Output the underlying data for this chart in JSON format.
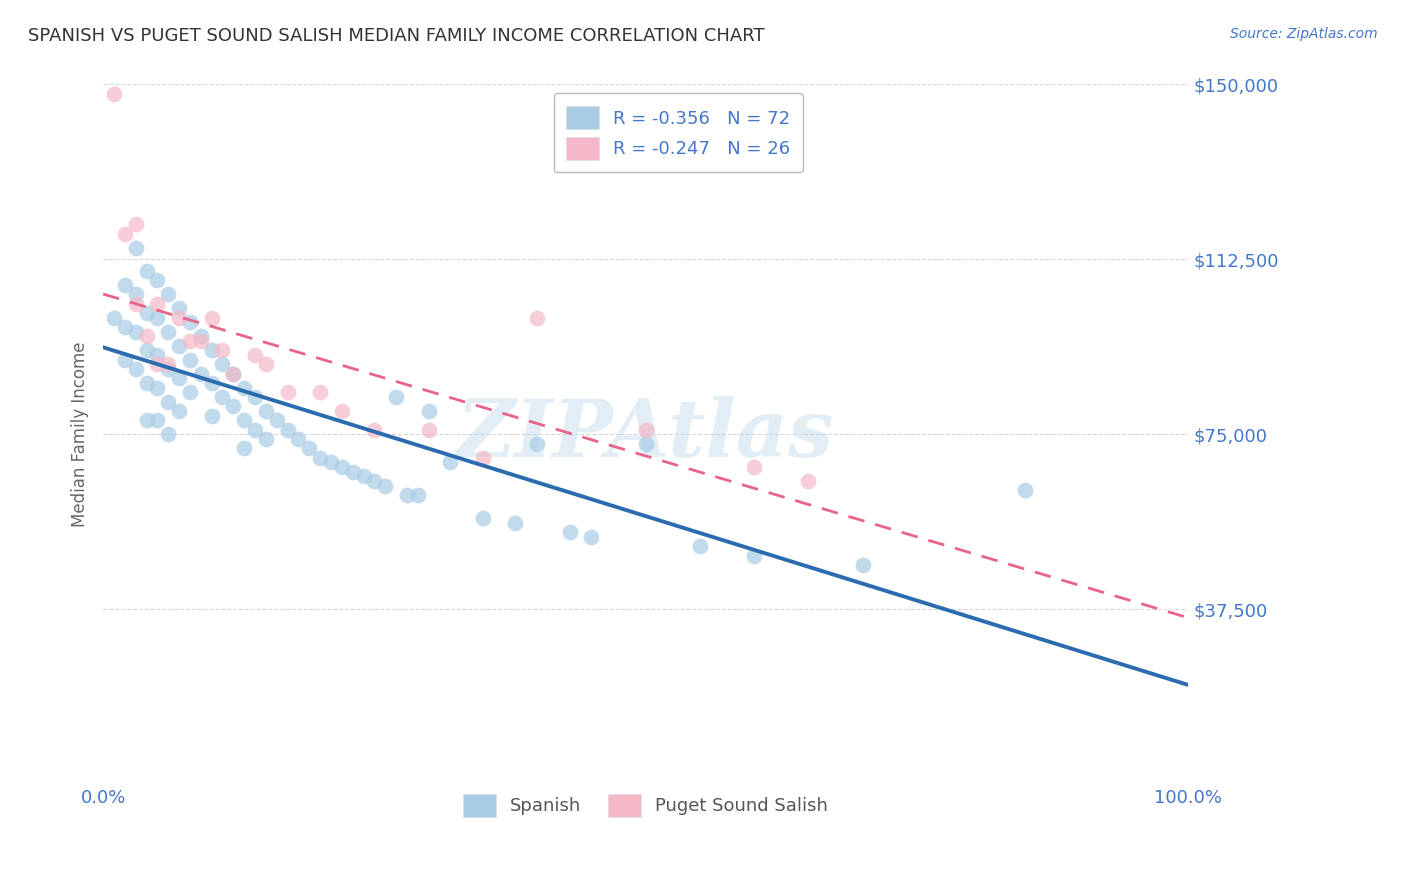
{
  "title": "SPANISH VS PUGET SOUND SALISH MEDIAN FAMILY INCOME CORRELATION CHART",
  "source_text": "Source: ZipAtlas.com",
  "ylabel": "Median Family Income",
  "xlim": [
    0,
    1.0
  ],
  "ylim": [
    0,
    150000
  ],
  "yticks": [
    37500,
    75000,
    112500,
    150000
  ],
  "ytick_labels": [
    "$37,500",
    "$75,000",
    "$112,500",
    "$150,000"
  ],
  "xticks": [
    0.0,
    1.0
  ],
  "xtick_labels": [
    "0.0%",
    "100.0%"
  ],
  "watermark": "ZIPAtlas",
  "legend_blue_label": "Spanish",
  "legend_pink_label": "Puget Sound Salish",
  "legend_line1": "R = -0.356   N = 72",
  "legend_line2": "R = -0.247   N = 26",
  "blue_dot_color": "#a8cce4",
  "pink_dot_color": "#f4b8c8",
  "line_blue_color": "#2b6cb0",
  "line_pink_color": "#e8648a",
  "title_color": "#333333",
  "axis_color": "#4477cc",
  "grid_color": "#cccccc",
  "bg_color": "#ffffff",
  "spanish_x": [
    0.01,
    0.02,
    0.02,
    0.02,
    0.03,
    0.03,
    0.03,
    0.03,
    0.04,
    0.04,
    0.04,
    0.04,
    0.04,
    0.05,
    0.05,
    0.05,
    0.05,
    0.05,
    0.06,
    0.06,
    0.06,
    0.06,
    0.06,
    0.07,
    0.07,
    0.07,
    0.07,
    0.08,
    0.08,
    0.08,
    0.09,
    0.09,
    0.1,
    0.1,
    0.1,
    0.11,
    0.11,
    0.12,
    0.12,
    0.13,
    0.13,
    0.13,
    0.14,
    0.14,
    0.15,
    0.15,
    0.16,
    0.17,
    0.18,
    0.19,
    0.2,
    0.21,
    0.22,
    0.23,
    0.24,
    0.25,
    0.26,
    0.27,
    0.28,
    0.29,
    0.3,
    0.32,
    0.35,
    0.38,
    0.4,
    0.43,
    0.45,
    0.5,
    0.55,
    0.6,
    0.7,
    0.85
  ],
  "spanish_y": [
    100000,
    107000,
    98000,
    91000,
    115000,
    105000,
    97000,
    89000,
    110000,
    101000,
    93000,
    86000,
    78000,
    108000,
    100000,
    92000,
    85000,
    78000,
    105000,
    97000,
    89000,
    82000,
    75000,
    102000,
    94000,
    87000,
    80000,
    99000,
    91000,
    84000,
    96000,
    88000,
    93000,
    86000,
    79000,
    90000,
    83000,
    88000,
    81000,
    85000,
    78000,
    72000,
    83000,
    76000,
    80000,
    74000,
    78000,
    76000,
    74000,
    72000,
    70000,
    69000,
    68000,
    67000,
    66000,
    65000,
    64000,
    83000,
    62000,
    62000,
    80000,
    69000,
    57000,
    56000,
    73000,
    54000,
    53000,
    73000,
    51000,
    49000,
    47000,
    63000
  ],
  "salish_x": [
    0.01,
    0.02,
    0.03,
    0.03,
    0.04,
    0.05,
    0.05,
    0.06,
    0.07,
    0.08,
    0.09,
    0.1,
    0.11,
    0.12,
    0.14,
    0.15,
    0.17,
    0.2,
    0.22,
    0.25,
    0.3,
    0.35,
    0.4,
    0.5,
    0.6,
    0.65
  ],
  "salish_y": [
    148000,
    118000,
    120000,
    103000,
    96000,
    103000,
    90000,
    90000,
    100000,
    95000,
    95000,
    100000,
    93000,
    88000,
    92000,
    90000,
    84000,
    84000,
    80000,
    76000,
    76000,
    70000,
    100000,
    76000,
    68000,
    65000
  ]
}
